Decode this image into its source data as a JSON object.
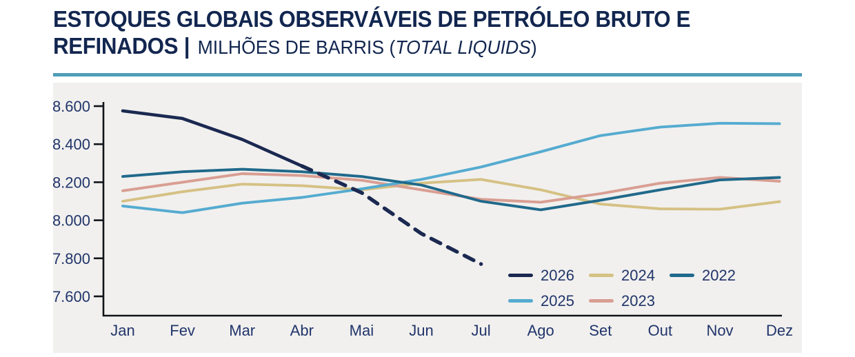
{
  "header": {
    "title_line1": "ESTOQUES GLOBAIS OBSERVÁVEIS DE PETRÓLEO BRUTO E",
    "title_line2_bold": "REFINADOS",
    "title_separator": "|",
    "subtitle_prefix": "MILHÕES DE BARRIS (",
    "subtitle_italic": "TOTAL LIQUIDS",
    "subtitle_suffix": ")"
  },
  "colors": {
    "accent_rule": "#4f9eb9",
    "panel_background": "#f1f0ee",
    "axis": "#101418",
    "axis_labels": "#21356b",
    "title_text": "#12264f"
  },
  "chart_data": {
    "type": "line",
    "title": "ESTOQUES GLOBAIS OBSERVÁVEIS DE PETRÓLEO BRUTO E REFINADOS",
    "subtitle": "MILHÕES DE BARRIS (TOTAL LIQUIDS)",
    "categories": [
      "Jan",
      "Fev",
      "Mar",
      "Abr",
      "Mai",
      "Jun",
      "Jul",
      "Ago",
      "Set",
      "Out",
      "Nov",
      "Dez"
    ],
    "ylim": [
      7500,
      8650
    ],
    "yticks": [
      8600,
      8400,
      8200,
      8000,
      7800,
      7600
    ],
    "ytick_labels": [
      "8.600",
      "8.400",
      "8.200",
      "8.000",
      "7.800",
      "7.600"
    ],
    "grid": false,
    "legend_position": "inside-bottom-right",
    "draw_order": [
      "2024",
      "2023",
      "2025",
      "2022",
      "2026"
    ],
    "series": [
      {
        "name": "2026",
        "color": "#1b2951",
        "line_style": "solid-then-dashed",
        "dash_from_index": 3,
        "values": [
          8575,
          8535,
          8425,
          8285,
          8145,
          7930,
          7770,
          null,
          null,
          null,
          null,
          null
        ]
      },
      {
        "name": "2025",
        "color": "#55abd0",
        "line_style": "solid",
        "values": [
          8075,
          8040,
          8090,
          8120,
          8165,
          8215,
          8280,
          8360,
          8445,
          8490,
          8510,
          8508
        ]
      },
      {
        "name": "2024",
        "color": "#d5c184",
        "line_style": "solid",
        "values": [
          8100,
          8150,
          8190,
          8182,
          8160,
          8195,
          8215,
          8160,
          8085,
          8060,
          8058,
          8098
        ]
      },
      {
        "name": "2023",
        "color": "#d99e92",
        "line_style": "solid",
        "values": [
          8155,
          8200,
          8245,
          8235,
          8210,
          8160,
          8110,
          8095,
          8140,
          8195,
          8225,
          8205
        ]
      },
      {
        "name": "2022",
        "color": "#20698b",
        "line_style": "solid",
        "values": [
          8230,
          8255,
          8268,
          8255,
          8230,
          8185,
          8100,
          8055,
          8105,
          8160,
          8212,
          8225
        ]
      }
    ]
  }
}
